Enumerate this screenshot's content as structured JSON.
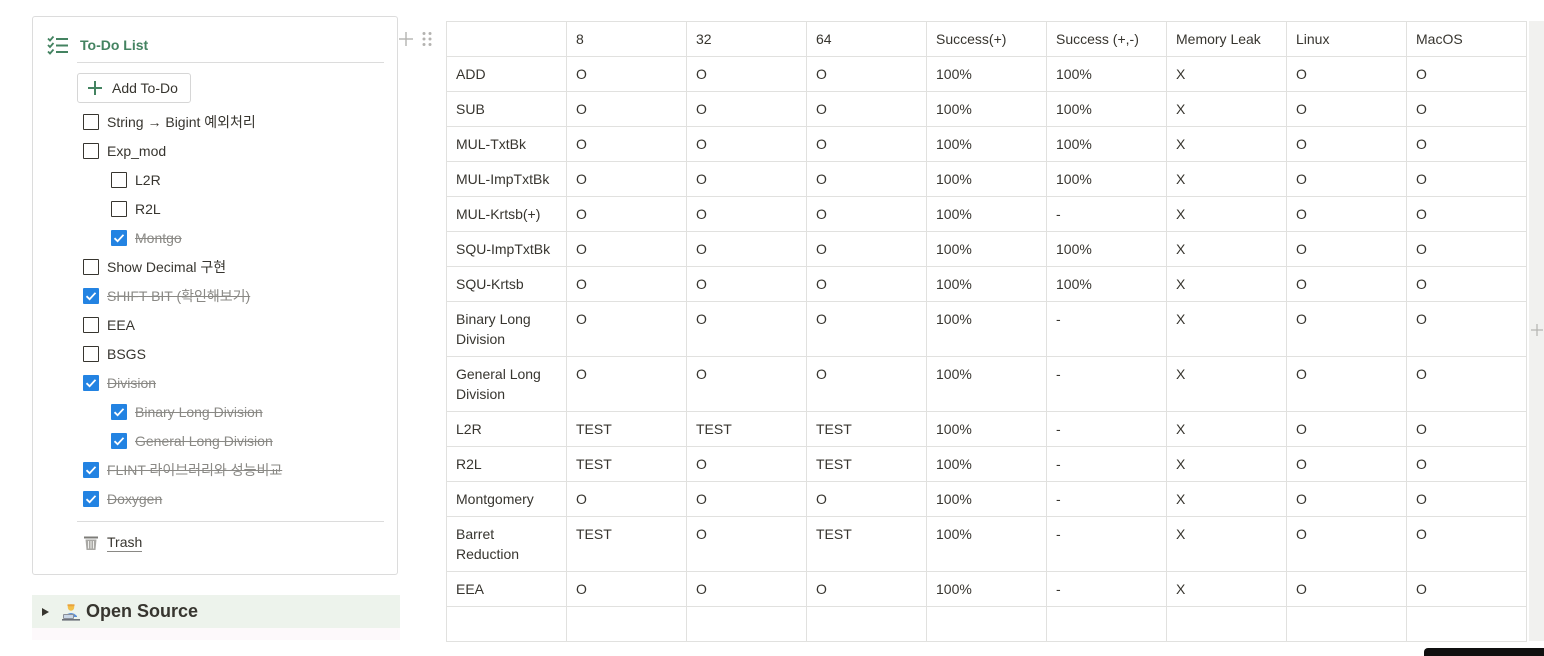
{
  "todo": {
    "title": "To-Do List",
    "add_label": "Add To-Do",
    "items": [
      {
        "label": "String → Bigint 예외처리",
        "checked": false,
        "level": 0
      },
      {
        "label": "Exp_mod",
        "checked": false,
        "level": 0
      },
      {
        "label": "L2R",
        "checked": false,
        "level": 1
      },
      {
        "label": "R2L",
        "checked": false,
        "level": 1
      },
      {
        "label": "Montgo",
        "checked": true,
        "level": 1
      },
      {
        "label": "Show Decimal 구현",
        "checked": false,
        "level": 0
      },
      {
        "label": "SHIFT BIT (확인해보기)",
        "checked": true,
        "level": 0
      },
      {
        "label": "EEA",
        "checked": false,
        "level": 0
      },
      {
        "label": "BSGS",
        "checked": false,
        "level": 0
      },
      {
        "label": "Division",
        "checked": true,
        "level": 0
      },
      {
        "label": "Binary Long Division",
        "checked": true,
        "level": 1
      },
      {
        "label": "General Long Division",
        "checked": true,
        "level": 1
      },
      {
        "label": "FLINT 라이브러리와 성능비교",
        "checked": true,
        "level": 0
      },
      {
        "label": "Doxygen",
        "checked": true,
        "level": 0
      }
    ],
    "trash_label": "Trash"
  },
  "open_source": {
    "label": "Open Source",
    "emoji_icon": "technologist-emoji-icon"
  },
  "table": {
    "rows": [
      [
        "",
        "8",
        "32",
        "64",
        "Success(+)",
        "Success (+,-)",
        "Memory Leak",
        "Linux",
        "MacOS"
      ],
      [
        "ADD",
        "O",
        "O",
        "O",
        "100%",
        "100%",
        "X",
        "O",
        "O"
      ],
      [
        "SUB",
        "O",
        "O",
        "O",
        "100%",
        "100%",
        "X",
        "O",
        "O"
      ],
      [
        "MUL-TxtBk",
        "O",
        "O",
        "O",
        "100%",
        "100%",
        "X",
        "O",
        "O"
      ],
      [
        "MUL-ImpTxtBk",
        "O",
        "O",
        "O",
        "100%",
        "100%",
        "X",
        "O",
        "O"
      ],
      [
        "MUL-Krtsb(+)",
        "O",
        "O",
        "O",
        "100%",
        "-",
        "X",
        "O",
        "O"
      ],
      [
        "SQU-ImpTxtBk",
        "O",
        "O",
        "O",
        "100%",
        "100%",
        "X",
        "O",
        "O"
      ],
      [
        "SQU-Krtsb",
        "O",
        "O",
        "O",
        "100%",
        "100%",
        "X",
        "O",
        "O"
      ],
      [
        "Binary Long Division",
        "O",
        "O",
        "O",
        "100%",
        "-",
        "X",
        "O",
        "O"
      ],
      [
        "General Long Division",
        "O",
        "O",
        "O",
        "100%",
        "-",
        "X",
        "O",
        "O"
      ],
      [
        "L2R",
        "TEST",
        "TEST",
        "TEST",
        "100%",
        "-",
        "X",
        "O",
        "O"
      ],
      [
        "R2L",
        "TEST",
        "O",
        "TEST",
        "100%",
        "-",
        "X",
        "O",
        "O"
      ],
      [
        "Montgomery",
        "O",
        "O",
        "O",
        "100%",
        "-",
        "X",
        "O",
        "O"
      ],
      [
        "Barret Reduction",
        "TEST",
        "O",
        "TEST",
        "100%",
        "-",
        "X",
        "O",
        "O"
      ],
      [
        "EEA",
        "O",
        "O",
        "O",
        "100%",
        "-",
        "X",
        "O",
        "O"
      ],
      [
        "",
        "",
        "",
        "",
        "",
        "",
        "",
        "",
        ""
      ]
    ]
  },
  "colors": {
    "accent_green": "#448361",
    "checkbox_blue": "#2383e2",
    "toggle_bg": "#edf3ec",
    "border": "#e1e1df"
  }
}
